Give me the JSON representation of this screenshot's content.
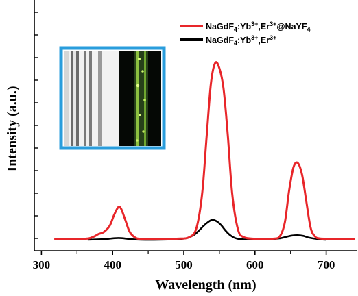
{
  "chart_data": {
    "type": "line",
    "xlabel": "Wavelength (nm)",
    "ylabel": "Intensity (a.u.)",
    "xlim": [
      320,
      740
    ],
    "ylim": [
      0,
      100
    ],
    "x_ticks": [
      300,
      400,
      500,
      600,
      700
    ],
    "y_ticks_labeled": false,
    "grid": false,
    "legend_position": "top-right",
    "inset": "photo of two vertical tubes: left under white light, right glowing green",
    "series": [
      {
        "name": "NaGdF4:Yb3+,Er3+@NaYF4",
        "legend": {
          "base": "NaGdF",
          "sub1": "4",
          "mid": ":Yb",
          "sup1": "3+",
          "sep": ",Er",
          "sup2": "3+",
          "tail": "@NaYF",
          "sub2": "4"
        },
        "color": "#e8262a",
        "x": [
          318,
          360,
          372,
          380,
          388,
          396,
          402,
          408,
          412,
          418,
          424,
          432,
          440,
          460,
          490,
          508,
          518,
          526,
          532,
          538,
          544,
          550,
          556,
          562,
          568,
          576,
          584,
          600,
          625,
          635,
          642,
          648,
          654,
          660,
          666,
          672,
          678,
          684,
          692,
          720,
          740
        ],
        "y": [
          0.3,
          0.5,
          1.5,
          3.2,
          4.5,
          8.0,
          14.0,
          18.5,
          17.5,
          11.0,
          4.5,
          1.2,
          0.5,
          0.4,
          0.6,
          1.5,
          7.0,
          27.0,
          58.0,
          88.0,
          100.0,
          97.0,
          85.0,
          58.0,
          26.0,
          6.0,
          1.5,
          0.6,
          0.6,
          2.0,
          10.0,
          28.0,
          41.0,
          43.5,
          37.0,
          22.0,
          7.0,
          2.0,
          0.7,
          0.5,
          0.5
        ]
      },
      {
        "name": "NaGdF4:Yb3+,Er3+",
        "legend": {
          "base": "NaGdF",
          "sub1": "4",
          "mid": ":Yb",
          "sup1": "3+",
          "sep": ",Er",
          "sup2": "3+"
        },
        "color": "#000000",
        "x": [
          365,
          390,
          400,
          408,
          416,
          426,
          440,
          465,
          490,
          505,
          515,
          522,
          528,
          534,
          540,
          546,
          552,
          558,
          564,
          572,
          585,
          620,
          635,
          645,
          652,
          660,
          668,
          676,
          690,
          700
        ],
        "y": [
          0.0,
          0.4,
          0.8,
          1.0,
          0.8,
          0.3,
          0.0,
          0.0,
          0.3,
          1.0,
          3.0,
          5.5,
          8.0,
          10.0,
          11.3,
          10.5,
          8.5,
          5.5,
          3.0,
          1.0,
          0.2,
          0.3,
          0.8,
          1.8,
          2.4,
          2.6,
          2.2,
          1.2,
          0.3,
          0.0
        ]
      }
    ]
  }
}
